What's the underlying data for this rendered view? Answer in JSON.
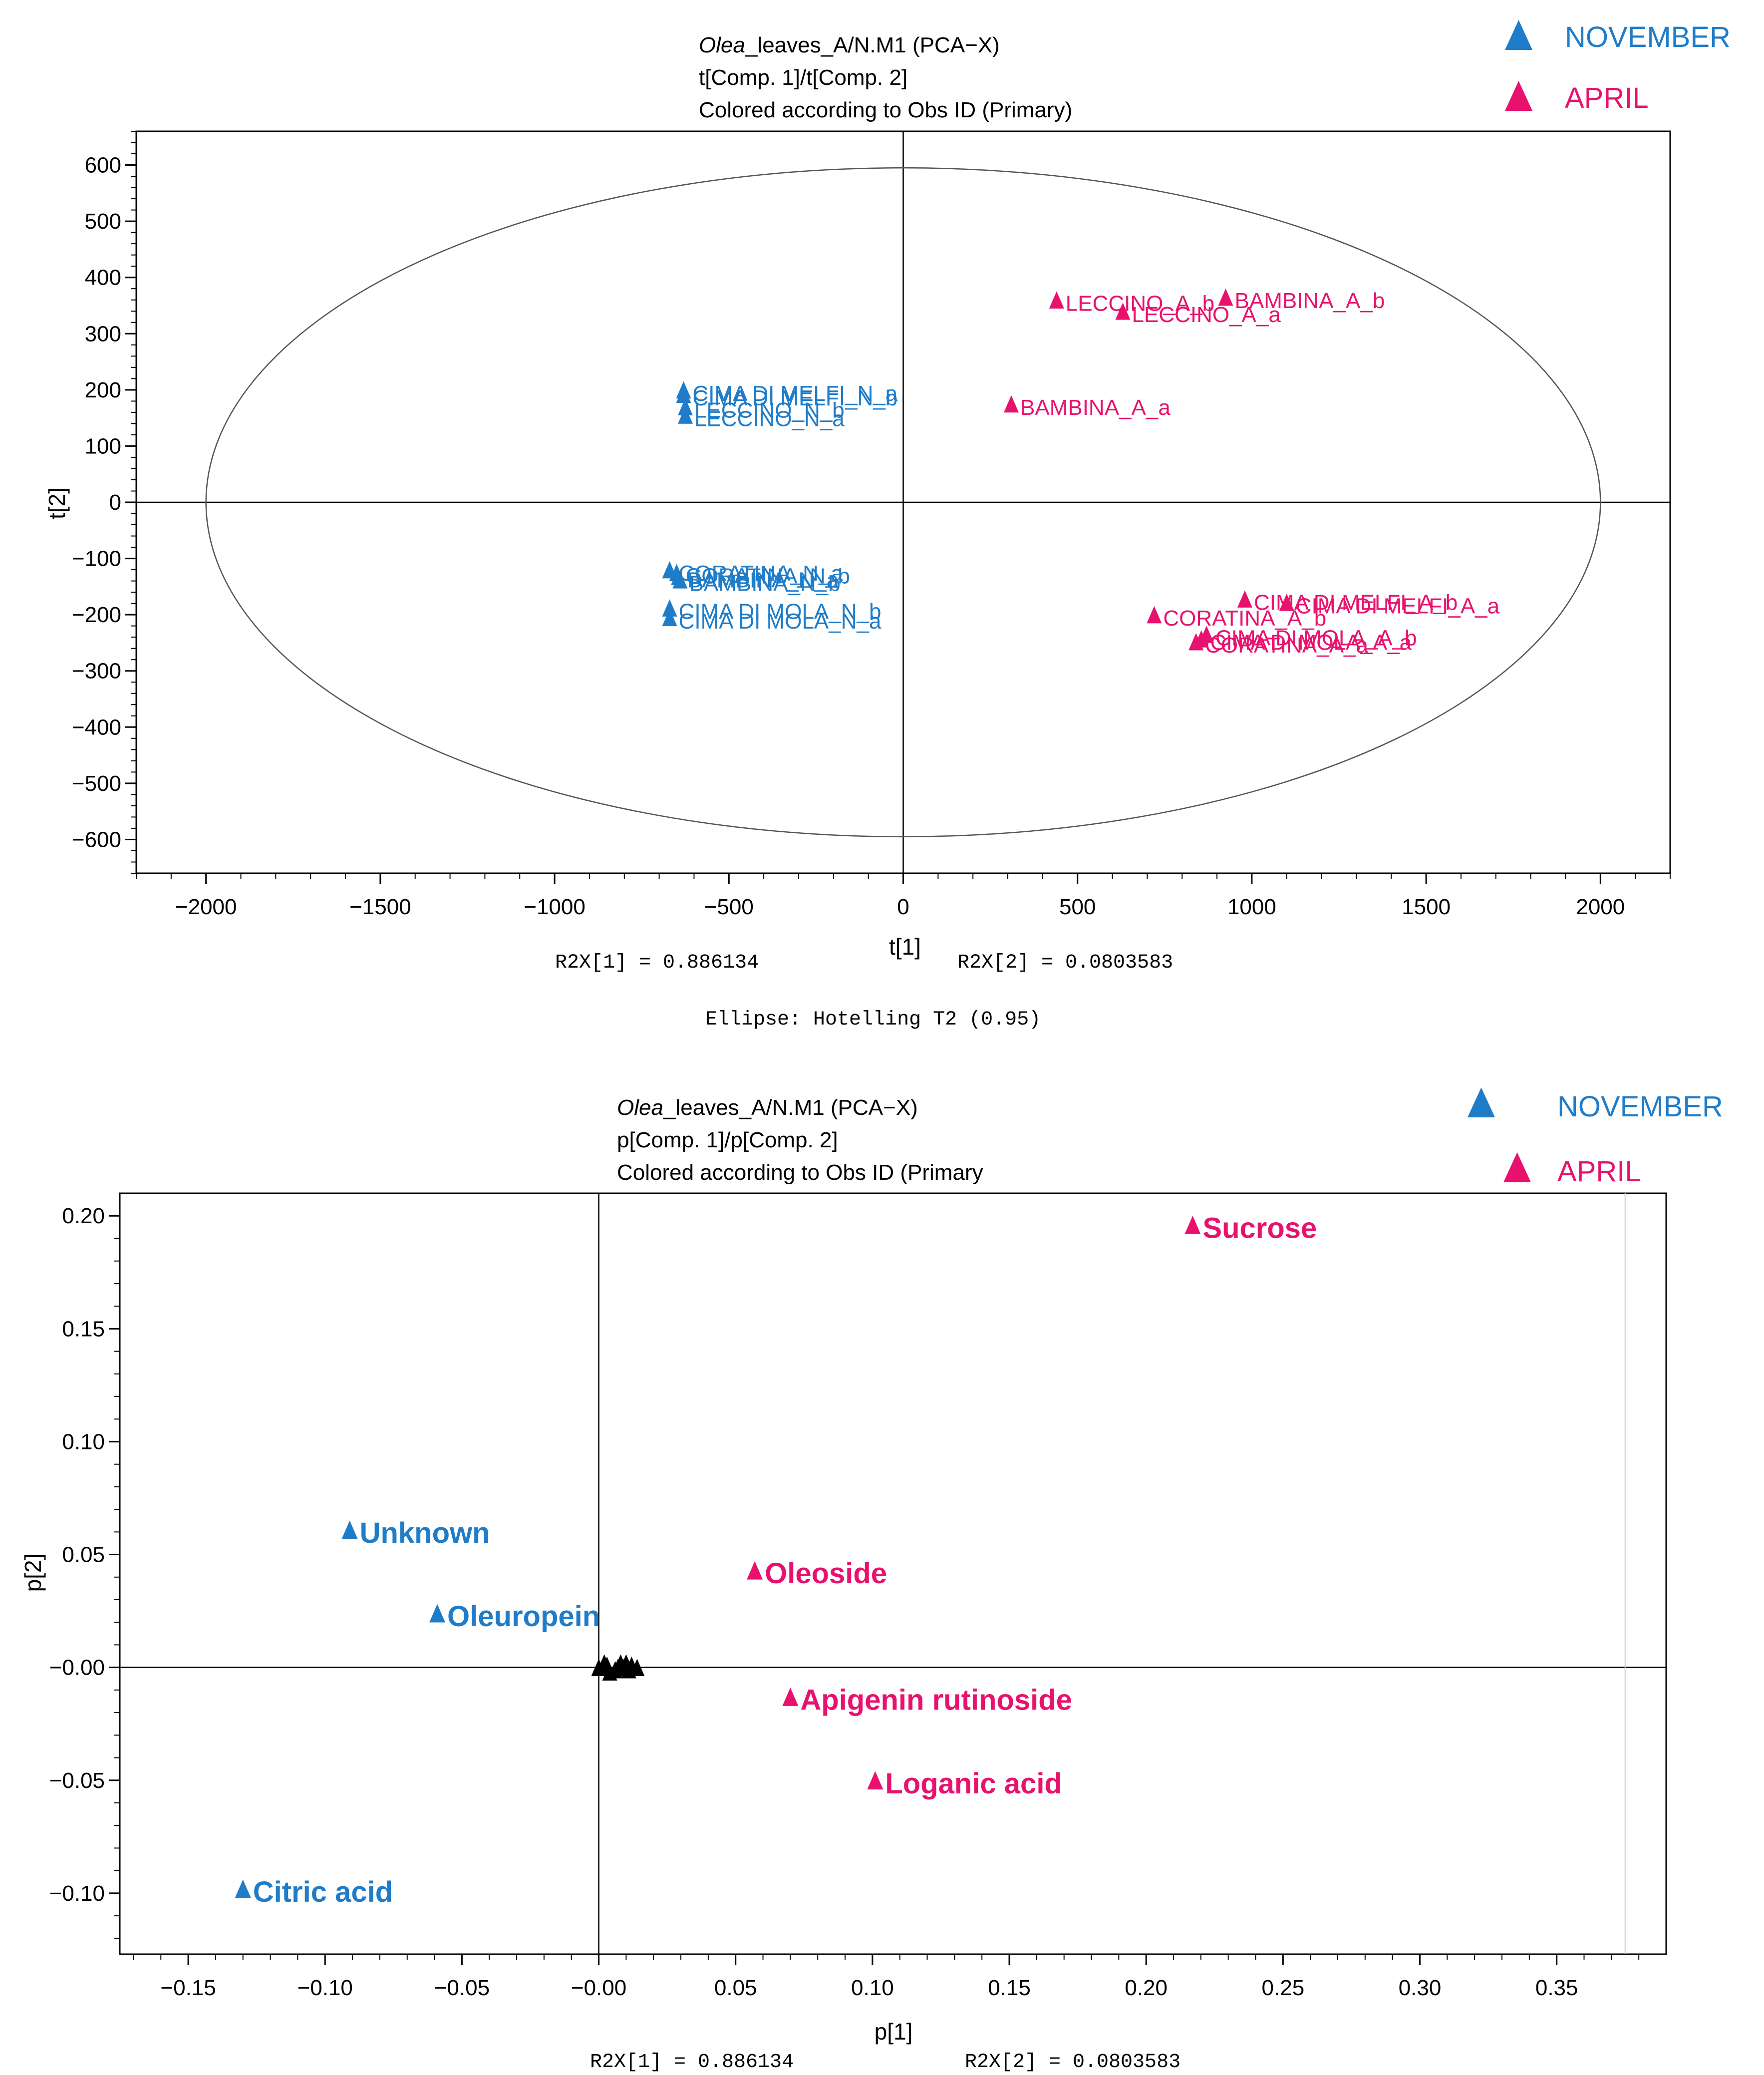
{
  "colors": {
    "november": "#1f7cc8",
    "april": "#e8126e",
    "axis": "#000000",
    "ellipse": "#555555",
    "cluster": "#000000"
  },
  "legend": {
    "november_label": "NOVEMBER",
    "april_label": "APRIL"
  },
  "chart_data": [
    {
      "type": "scatter",
      "title_italic": "Olea",
      "title_rest": "_leaves_A/N.M1 (PCA−X)",
      "subtitle1": "t[Comp. 1]/t[Comp. 2]",
      "subtitle2": "Colored according to Obs ID (Primary)",
      "xlabel": "t[1]",
      "ylabel": "t[2]",
      "xlim": [
        -2200,
        2200
      ],
      "ylim": [
        -660,
        660
      ],
      "xticks": [
        -2000,
        -1500,
        -1000,
        -500,
        0,
        500,
        1000,
        1500,
        2000
      ],
      "xtick_labels": [
        "−2000",
        "−1500",
        "−1000",
        "−500",
        "0",
        "500",
        "1000",
        "1500",
        "2000"
      ],
      "yticks": [
        600,
        500,
        400,
        300,
        200,
        100,
        0,
        -100,
        -200,
        -300,
        -400,
        -500,
        -600
      ],
      "ytick_labels": [
        "600",
        "500",
        "400",
        "300",
        "200",
        "100",
        "0",
        "−100",
        "−200",
        "−300",
        "−400",
        "−500",
        "−600"
      ],
      "ellipse": {
        "rx": 2000,
        "ry": 595
      },
      "footer1": "R2X[1] = 0.886134",
      "footer2": "R2X[2] = 0.0803583",
      "footer3": "Ellipse: Hotelling T2 (0.95)",
      "series": [
        {
          "name": "NOVEMBER",
          "points": [
            {
              "label": "CIMA DI MELFI_N_a",
              "x": -630,
              "y": 200
            },
            {
              "label": "CIMA DI MELFI_N_b",
              "x": -630,
              "y": 192
            },
            {
              "label": "LECCINO_N_b",
              "x": -625,
              "y": 170
            },
            {
              "label": "LECCINO_N_a",
              "x": -625,
              "y": 155
            },
            {
              "label": "CORATINA_N_a",
              "x": -670,
              "y": -120
            },
            {
              "label": "CORATINA_N_b",
              "x": -650,
              "y": -125
            },
            {
              "label": "BAMBINA_N_a",
              "x": -645,
              "y": -132
            },
            {
              "label": "BAMBINA_N_b",
              "x": -640,
              "y": -138
            },
            {
              "label": "CIMA DI MOLA_N_b",
              "x": -670,
              "y": -188
            },
            {
              "label": "CIMA DI MOLA_N_a",
              "x": -670,
              "y": -205
            }
          ]
        },
        {
          "name": "APRIL",
          "points": [
            {
              "label": "LECCINO_A_b",
              "x": 440,
              "y": 360
            },
            {
              "label": "BAMBINA_A_b",
              "x": 925,
              "y": 365
            },
            {
              "label": "LECCINO_A_a",
              "x": 630,
              "y": 340
            },
            {
              "label": "BAMBINA_A_a",
              "x": 310,
              "y": 175
            },
            {
              "label": "CIMA DI MELFI_A_b",
              "x": 980,
              "y": -172
            },
            {
              "label": "CIMA DI MELFI_A_a",
              "x": 1100,
              "y": -178
            },
            {
              "label": "CORATINA_A_b",
              "x": 720,
              "y": -200
            },
            {
              "label": "CIMA DI MOLA_A_b",
              "x": 870,
              "y": -235
            },
            {
              "label": "CIMA DI MOLA_A_a",
              "x": 855,
              "y": -243
            },
            {
              "label": "CORATINA_A_a",
              "x": 840,
              "y": -248
            }
          ]
        }
      ]
    },
    {
      "type": "scatter",
      "title_italic": "Olea",
      "title_rest": "_leaves_A/N.M1 (PCA−X)",
      "subtitle1": "p[Comp. 1]/p[Comp. 2]",
      "subtitle2": "Colored according to Obs ID (Primary",
      "xlabel": "p[1]",
      "ylabel": "p[2]",
      "xlim": [
        -0.175,
        0.39
      ],
      "ylim": [
        -0.127,
        0.21
      ],
      "xticks": [
        -0.15,
        -0.1,
        -0.05,
        0.0,
        0.05,
        0.1,
        0.15,
        0.2,
        0.25,
        0.3,
        0.35
      ],
      "xtick_labels": [
        "−0.15",
        "−0.10",
        "−0.05",
        "−0.00",
        "0.05",
        "0.10",
        "0.15",
        "0.20",
        "0.25",
        "0.30",
        "0.35"
      ],
      "yticks": [
        0.2,
        0.15,
        0.1,
        0.05,
        0.0,
        -0.05,
        -0.1
      ],
      "ytick_labels": [
        "0.20",
        "0.15",
        "0.10",
        "0.05",
        "−0.00",
        "−0.05",
        "−0.10"
      ],
      "footer1": "R2X[1] = 0.886134",
      "footer2": "R2X[2] = 0.0803583",
      "series": [
        {
          "name": "NOVEMBER",
          "points": [
            {
              "label": "Unknown",
              "x": -0.091,
              "y": 0.061
            },
            {
              "label": "Oleuropein",
              "x": -0.059,
              "y": 0.024
            },
            {
              "label": "Citric acid",
              "x": -0.13,
              "y": -0.098
            }
          ]
        },
        {
          "name": "APRIL",
          "points": [
            {
              "label": "Sucrose",
              "x": 0.217,
              "y": 0.196
            },
            {
              "label": "Oleoside",
              "x": 0.057,
              "y": 0.043
            },
            {
              "label": "Apigenin rutinoside",
              "x": 0.07,
              "y": -0.013
            },
            {
              "label": "Loganic acid",
              "x": 0.101,
              "y": -0.05
            }
          ]
        }
      ],
      "cluster_points": [
        {
          "x": 0.0,
          "y": 0.0
        },
        {
          "x": 0.003,
          "y": 0.001
        },
        {
          "x": 0.006,
          "y": -0.001
        },
        {
          "x": 0.009,
          "y": 0.0
        },
        {
          "x": 0.012,
          "y": 0.001
        },
        {
          "x": 0.004,
          "y": -0.002
        },
        {
          "x": 0.008,
          "y": 0.002
        },
        {
          "x": 0.011,
          "y": -0.001
        },
        {
          "x": 0.002,
          "y": 0.002
        },
        {
          "x": 0.014,
          "y": 0.0
        },
        {
          "x": 0.007,
          "y": 0.0
        },
        {
          "x": 0.01,
          "y": 0.002
        }
      ]
    }
  ]
}
